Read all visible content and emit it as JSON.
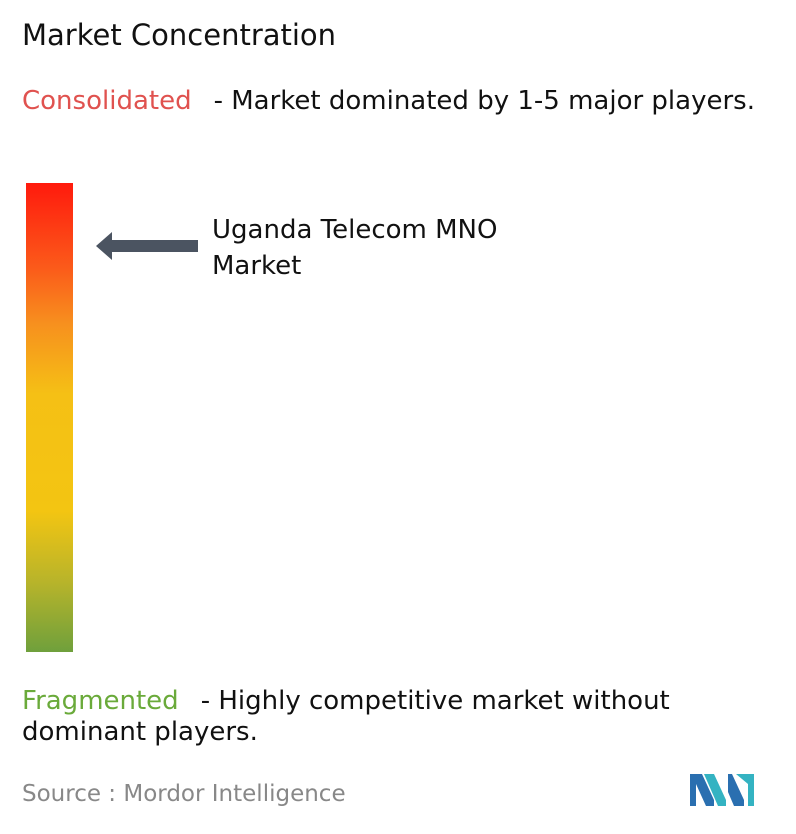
{
  "title": "Market Concentration",
  "consolidated": {
    "label": "Consolidated",
    "description": "- Market dominated by 1-5 major players."
  },
  "market": {
    "label": "Uganda Telecom MNO Market"
  },
  "fragmented": {
    "label": "Fragmented",
    "description": "- Highly competitive market without dominant players."
  },
  "source": "Source :  Mordor Intelligence"
}
